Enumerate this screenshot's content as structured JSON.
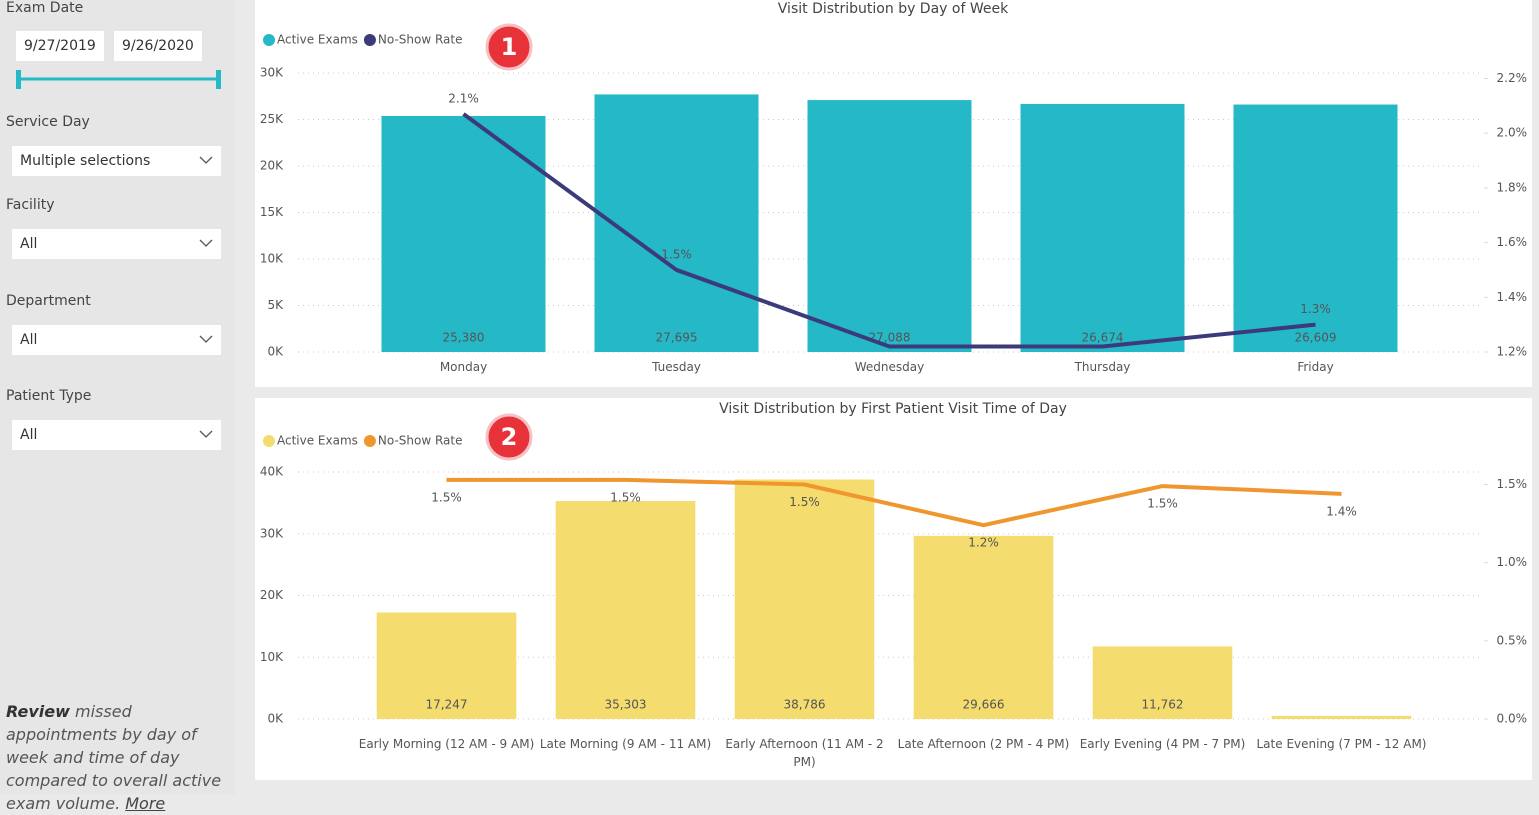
{
  "sidebar": {
    "exam_date": {
      "label": "Exam Date",
      "start": "9/27/2019",
      "end": "9/26/2020"
    },
    "filters": [
      {
        "label": "Service Day",
        "value": "Multiple selections"
      },
      {
        "label": "Facility",
        "value": "All"
      },
      {
        "label": "Department",
        "value": "All"
      },
      {
        "label": "Patient Type",
        "value": "All"
      }
    ],
    "note": {
      "lead": "Review",
      "text": "missed appointments by day of week and time of day compared to overall active exam volume.",
      "link": "More"
    }
  },
  "chart_data": [
    {
      "type": "combo",
      "title": "Visit Distribution by Day of Week",
      "annotation": "1",
      "categories": [
        "Monday",
        "Tuesday",
        "Wednesday",
        "Thursday",
        "Friday"
      ],
      "series": [
        {
          "name": "Active Exams",
          "type": "bar",
          "color": "#25b9c8",
          "values": [
            25380,
            27695,
            27088,
            26674,
            26609
          ],
          "value_labels": [
            "25,380",
            "27,695",
            "27,088",
            "26,674",
            "26,609"
          ]
        },
        {
          "name": "No-Show Rate",
          "type": "line",
          "axis": "y2",
          "color": "#3b3a7a",
          "values": [
            2.07,
            1.5,
            1.22,
            1.22,
            1.3
          ],
          "value_labels": [
            "2.1%",
            "1.5%",
            null,
            null,
            "1.3%"
          ]
        }
      ],
      "ylim": [
        0,
        30000
      ],
      "yticks": [
        {
          "value": 0,
          "label": "0K"
        },
        {
          "value": 5000,
          "label": "5K"
        },
        {
          "value": 10000,
          "label": "10K"
        },
        {
          "value": 15000,
          "label": "15K"
        },
        {
          "value": 20000,
          "label": "20K"
        },
        {
          "value": 25000,
          "label": "25K"
        },
        {
          "value": 30000,
          "label": "30K"
        }
      ],
      "y2lim": [
        1.2,
        2.22
      ],
      "y2ticks": [
        {
          "value": 1.2,
          "label": "1.2%"
        },
        {
          "value": 1.4,
          "label": "1.4%"
        },
        {
          "value": 1.6,
          "label": "1.6%"
        },
        {
          "value": 1.8,
          "label": "1.8%"
        },
        {
          "value": 2.0,
          "label": "2.0%"
        },
        {
          "value": 2.2,
          "label": "2.2%"
        }
      ],
      "grid": true
    },
    {
      "type": "combo",
      "title": "Visit Distribution by First Patient Visit Time of Day",
      "annotation": "2",
      "categories": [
        "Early Morning (12 AM - 9 AM)",
        "Late Morning (9 AM - 11 AM)",
        "Early Afternoon (11 AM - 2 PM)",
        "Late Afternoon (2 PM - 4 PM)",
        "Early Evening (4 PM - 7 PM)",
        "Late Evening (7 PM - 12 AM)"
      ],
      "series": [
        {
          "name": "Active Exams",
          "type": "bar",
          "color": "#f5dc6f",
          "values": [
            17247,
            35303,
            38786,
            29666,
            11762,
            500
          ],
          "value_labels": [
            "17,247",
            "35,303",
            "38,786",
            "29,666",
            "11,762",
            null
          ]
        },
        {
          "name": "No-Show Rate",
          "type": "line",
          "axis": "y2",
          "color": "#f0962e",
          "values": [
            1.53,
            1.53,
            1.5,
            1.24,
            1.49,
            1.44
          ],
          "value_labels": [
            "1.5%",
            "1.5%",
            "1.5%",
            "1.2%",
            "1.5%",
            "1.4%"
          ]
        }
      ],
      "ylim": [
        0,
        40000
      ],
      "yticks": [
        {
          "value": 0,
          "label": "0K"
        },
        {
          "value": 10000,
          "label": "10K"
        },
        {
          "value": 20000,
          "label": "20K"
        },
        {
          "value": 30000,
          "label": "30K"
        },
        {
          "value": 40000,
          "label": "40K"
        }
      ],
      "y2lim": [
        0,
        1.58
      ],
      "y2ticks": [
        {
          "value": 0,
          "label": "0.0%"
        },
        {
          "value": 0.5,
          "label": "0.5%"
        },
        {
          "value": 1.0,
          "label": "1.0%"
        },
        {
          "value": 1.5,
          "label": "1.5%"
        }
      ],
      "grid": true
    }
  ]
}
